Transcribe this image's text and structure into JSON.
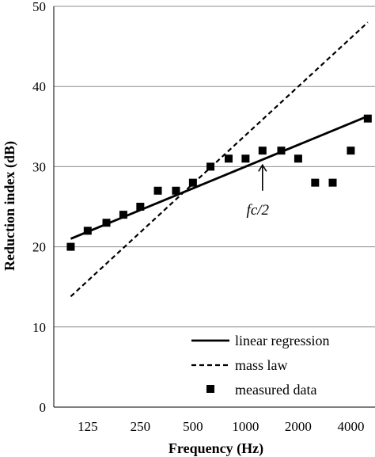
{
  "chart_data": {
    "type": "line",
    "xlabel": "Frequency (Hz)",
    "ylabel": "Reduction index (dB)",
    "x_scale": "log",
    "x_tick_labels": [
      "125",
      "250",
      "500",
      "1000",
      "2000",
      "4000"
    ],
    "x_tick_values": [
      125,
      250,
      500,
      1000,
      2000,
      4000
    ],
    "xlim": [
      80,
      5500
    ],
    "ylim": [
      0,
      50
    ],
    "y_ticks": [
      0,
      10,
      20,
      30,
      40,
      50
    ],
    "grid": "horizontal",
    "legend_position": "bottom-right",
    "series": [
      {
        "name": "linear regression",
        "style": "solid",
        "x": [
          100,
          5000
        ],
        "y": [
          21,
          36.3
        ]
      },
      {
        "name": "mass law",
        "style": "dashed",
        "x": [
          100,
          5000
        ],
        "y": [
          13.8,
          48
        ]
      },
      {
        "name": "measured data",
        "style": "markers",
        "x": [
          100,
          125,
          160,
          200,
          250,
          315,
          400,
          500,
          630,
          800,
          1000,
          1250,
          1600,
          2000,
          2500,
          3150,
          4000,
          5000
        ],
        "y": [
          20,
          22,
          23,
          24,
          25,
          27,
          27,
          28,
          30,
          31,
          31,
          32,
          32,
          31,
          28,
          28,
          32,
          36
        ]
      }
    ],
    "annotations": [
      {
        "text": "fc/2",
        "arrow_x": 1250,
        "arrow_y_from": 27,
        "arrow_y_to": 30.2
      }
    ]
  }
}
